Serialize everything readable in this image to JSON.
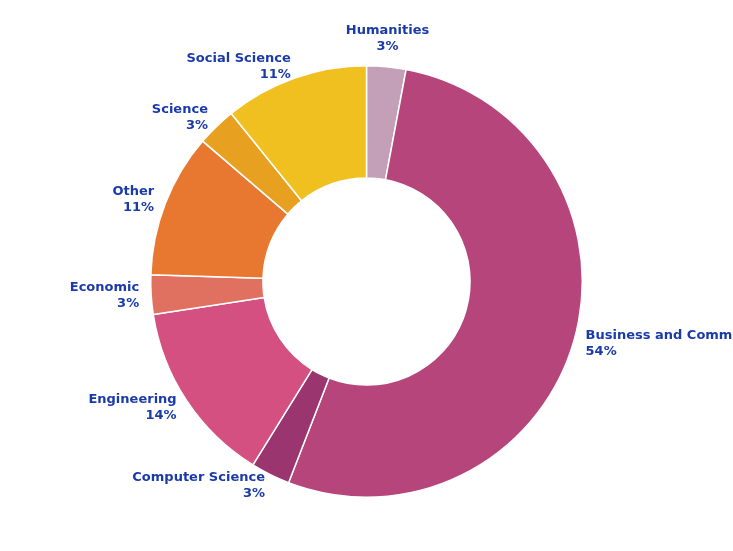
{
  "chart_data": {
    "type": "doughnut",
    "categories": [
      "Humanities",
      "Business and Commerce",
      "Computer Science",
      "Engineering",
      "Economic",
      "Other",
      "Science",
      "Social Science"
    ],
    "values": [
      3,
      54,
      3,
      14,
      3,
      11,
      3,
      11
    ],
    "value_labels": [
      "3%",
      "54%",
      "3%",
      "14%",
      "3%",
      "11%",
      "3%",
      "11%"
    ],
    "colors": [
      "#c4a0b8",
      "#b5457a",
      "#9b3570",
      "#d45080",
      "#e07060",
      "#e87830",
      "#e8a020",
      "#f0c020"
    ],
    "data_labels": true,
    "legend": false
  }
}
